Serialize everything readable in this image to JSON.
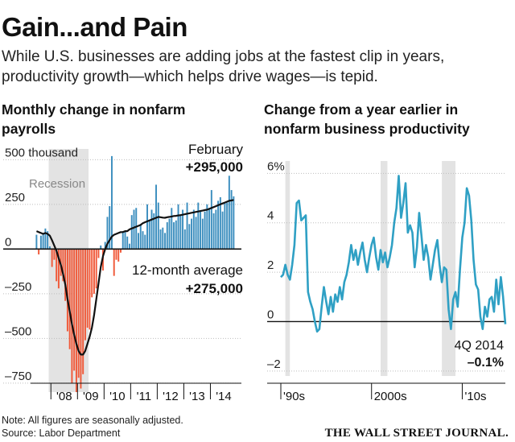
{
  "header": {
    "title": "Gain...and Pain",
    "subtitle": "While U.S. businesses are adding jobs at the fastest clip in years, productivity growth—which helps drive wages—is tepid."
  },
  "footer": {
    "note": "Note: All figures are seasonally adjusted.",
    "source": "Source: Labor Department",
    "brand": "THE WALL STREET JOURNAL."
  },
  "colors": {
    "gain": "#3d8fbf",
    "loss": "#f05a3a",
    "shade": "#e3e3e3",
    "line": "#111111",
    "productivity": "#2fa0c4"
  },
  "chart_data": [
    {
      "type": "bar",
      "title": "Monthly change in nonfarm payrolls",
      "units": "thousand",
      "ylim": [
        -800,
        560
      ],
      "yticks": [
        {
          "v": 500,
          "label": "500 thousand"
        },
        {
          "v": 250,
          "label": "250"
        },
        {
          "v": 0,
          "label": "0"
        },
        {
          "v": -250,
          "label": "–250"
        },
        {
          "v": -500,
          "label": "–500"
        },
        {
          "v": -750,
          "label": "–750"
        }
      ],
      "xticks": [
        "'08",
        "'09",
        "'10",
        "'11",
        "'12",
        "'13",
        "'14"
      ],
      "start": "2007-06",
      "end": "2015-02",
      "recession": {
        "label": "Recession",
        "from": "2007-12",
        "to": "2009-06"
      },
      "series": [
        {
          "kind": "bars",
          "values": [
            80,
            -30,
            75,
            85,
            115,
            100,
            15,
            -100,
            -60,
            -180,
            -220,
            -150,
            -180,
            -290,
            -460,
            -560,
            -750,
            -680,
            -800,
            -720,
            -780,
            -700,
            -510,
            -440,
            -450,
            -270,
            -250,
            -220,
            -50,
            20,
            -120,
            40,
            180,
            240,
            520,
            -150,
            -60,
            -70,
            -20,
            100,
            100,
            70,
            30,
            190,
            220,
            230,
            90,
            140,
            100,
            80,
            250,
            160,
            220,
            200,
            360,
            260,
            110,
            120,
            90,
            150,
            170,
            230,
            150,
            160,
            250,
            190,
            220,
            110,
            260,
            140,
            170,
            220,
            180,
            260,
            210,
            170,
            210,
            250,
            230,
            330,
            200,
            220,
            270,
            290,
            210,
            260,
            260,
            410,
            330,
            295
          ]
        },
        {
          "kind": "line",
          "name": "12-month average",
          "values": [
            100,
            95,
            90,
            85,
            90,
            85,
            75,
            50,
            20,
            -10,
            -50,
            -90,
            -140,
            -200,
            -280,
            -350,
            -420,
            -480,
            -530,
            -570,
            -590,
            -590,
            -570,
            -530,
            -490,
            -440,
            -370,
            -280,
            -190,
            -100,
            -40,
            0,
            30,
            50,
            70,
            80,
            85,
            90,
            95,
            95,
            100,
            100,
            110,
            115,
            120,
            125,
            130,
            135,
            145,
            150,
            155,
            160,
            165,
            170,
            175,
            180,
            178,
            176,
            175,
            178,
            180,
            182,
            185,
            186,
            188,
            190,
            192,
            195,
            198,
            200,
            203,
            205,
            208,
            210,
            213,
            215,
            218,
            220,
            225,
            230,
            235,
            240,
            245,
            250,
            255,
            260,
            265,
            270,
            272,
            275
          ]
        }
      ],
      "annotations": [
        {
          "label": "February",
          "value": "+295,000"
        },
        {
          "label": "12-month average",
          "value": "+275,000"
        }
      ]
    },
    {
      "type": "line",
      "title": "Change from a year earlier in nonfarm business productivity",
      "units": "%",
      "ylim": [
        -2.2,
        6.5
      ],
      "yticks": [
        {
          "v": 6,
          "label": "6%"
        },
        {
          "v": 4,
          "label": "4"
        },
        {
          "v": 2,
          "label": "2"
        },
        {
          "v": 0,
          "label": "0"
        },
        {
          "v": -2,
          "label": "–2"
        }
      ],
      "xticks": [
        "'90s",
        "2000s",
        "'10s"
      ],
      "start": "1990 Q1",
      "end": "2014 Q4",
      "recessions": [
        {
          "from": "1990 Q3",
          "to": "1991 Q1"
        },
        {
          "from": "2001 Q1",
          "to": "2001 Q4"
        },
        {
          "from": "2007 Q4",
          "to": "2009 Q2"
        }
      ],
      "values": [
        1.8,
        1.9,
        2.3,
        1.9,
        1.7,
        2.3,
        3.1,
        4.8,
        4.9,
        4.1,
        4.2,
        4.3,
        1.2,
        0.8,
        0.5,
        0.0,
        -0.4,
        -0.3,
        0.6,
        1.4,
        0.8,
        0.3,
        1.0,
        0.4,
        1.1,
        0.8,
        1.4,
        0.9,
        1.6,
        1.9,
        2.4,
        3.1,
        2.5,
        2.9,
        2.3,
        2.8,
        3.2,
        2.5,
        2.0,
        2.6,
        3.1,
        3.4,
        2.6,
        2.1,
        2.9,
        2.4,
        2.8,
        2.2,
        2.6,
        3.1,
        4.0,
        4.6,
        5.9,
        4.2,
        4.8,
        5.6,
        3.6,
        3.9,
        3.6,
        2.2,
        3.0,
        4.4,
        3.5,
        2.5,
        3.1,
        2.6,
        1.7,
        2.3,
        2.9,
        3.3,
        2.3,
        1.6,
        2.2,
        2.1,
        0.5,
        -0.3,
        0.9,
        1.2,
        0.6,
        2.1,
        3.4,
        4.0,
        5.4,
        5.1,
        4.1,
        2.5,
        1.5,
        1.3,
        0.2,
        -0.3,
        0.6,
        0.2,
        0.9,
        1.0,
        0.4,
        1.7,
        0.7,
        1.8,
        1.0,
        -0.1
      ],
      "annotation": {
        "label": "4Q 2014",
        "value": "–0.1%"
      }
    }
  ]
}
